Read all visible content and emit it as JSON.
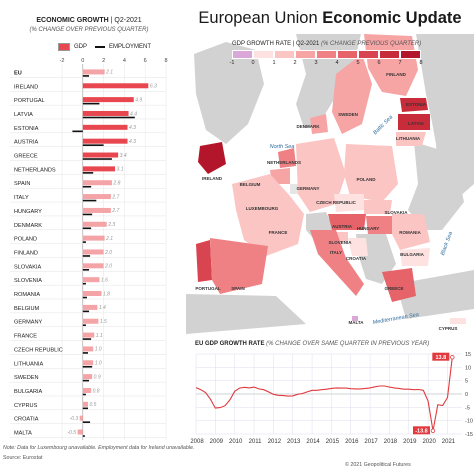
{
  "left_chart": {
    "title": "ECONOMIC GROWTH",
    "title_suffix": " | Q2-2021",
    "subtitle": "(% CHANGE OVER PREVIOUS QUARTER)",
    "legend": {
      "gdp": "GDP",
      "employment": "EMPLOYMENT"
    }
  },
  "main_title": {
    "regular": "European Union ",
    "bold": "Economic Update"
  },
  "map": {
    "legend_title": "GDP GROWTH RATE | Q2-2021 ",
    "legend_note": "(% CHANGE PREVIOUS QUARTER)",
    "legend_ticks": [
      "-1",
      "0",
      "1",
      "2",
      "3",
      "4",
      "5",
      "6",
      "7",
      "8"
    ],
    "legend_colors": [
      "#d9a8d8",
      "#fde2e1",
      "#fbc5c3",
      "#f6a4a4",
      "#ef8184",
      "#e56369",
      "#d84550",
      "#c82c3a",
      "#b3162a"
    ],
    "sea_labels": [
      "North Sea",
      "Baltic Sea",
      "Black Sea",
      "Mediterranean Sea"
    ],
    "country_labels": [
      "FINLAND",
      "SWEDEN",
      "ESTONIA",
      "LATVIA",
      "LITHUANIA",
      "DENMARK",
      "IRELAND",
      "NETHERLANDS",
      "BELGIUM",
      "LUXEMBOURG",
      "GERMANY",
      "POLAND",
      "CZECH REPUBLIC",
      "SLOVAKIA",
      "AUSTRIA",
      "HUNGARY",
      "ROMANIA",
      "FRANCE",
      "SLOVENIA",
      "CROATIA",
      "BULGARIA",
      "ITALY",
      "PORTUGAL",
      "SPAIN",
      "GREECE",
      "MALTA",
      "CYPRUS"
    ]
  },
  "line_chart_title": {
    "bold": "EU GDP GROWTH RATE ",
    "note": "(% CHANGE OVER SAME QUARTER IN PREVIOUS YEAR)"
  },
  "notes": {
    "data_note": "Note: Data for Luxembourg unavailable. Employment data for Ireland unavailable.",
    "source": "Source: Eurostat",
    "copyright": "© 2021 Geopolitical Futures"
  },
  "colors": {
    "gdp_bar": "#e8474f",
    "gdp_bar_light": "#f4a3a6",
    "employment": "#111111",
    "line": "#e03a3e",
    "map_water": "#ffffff",
    "map_nonEU": "#d2d2d2"
  },
  "chart_data": [
    {
      "type": "bar",
      "title": "ECONOMIC GROWTH | Q2-2021",
      "subtitle": "(% CHANGE OVER PREVIOUS QUARTER)",
      "xlim": [
        -2,
        8
      ],
      "xticks": [
        -2,
        0,
        2,
        4,
        6,
        8
      ],
      "categories": [
        "EU",
        "IRELAND",
        "PORTUGAL",
        "LATVIA",
        "ESTONIA",
        "AUSTRIA",
        "GREECE",
        "NETHERLANDS",
        "SPAIN",
        "ITALY",
        "HUNGARY",
        "DENMARK",
        "POLAND",
        "FINLAND",
        "SLOVAKIA",
        "SLOVENIA",
        "ROMANIA",
        "BELGIUM",
        "GERMANY",
        "FRANCE",
        "CZECH REPUBLIC",
        "LITHUANIA",
        "SWEDEN",
        "BULGARIA",
        "CYPRUS",
        "CROATIA",
        "MALTA"
      ],
      "series": [
        {
          "name": "GDP",
          "values": [
            2.1,
            6.3,
            4.9,
            4.4,
            4.3,
            4.3,
            3.4,
            3.1,
            2.8,
            2.7,
            2.7,
            2.3,
            2.1,
            2.0,
            2.0,
            1.6,
            1.8,
            1.4,
            1.5,
            1.1,
            1.0,
            1.0,
            0.9,
            0.8,
            0.5,
            -0.3,
            -0.5
          ],
          "labels": [
            "2.1",
            "6.3",
            "4.9",
            "4.4",
            "4.3",
            "4.3",
            "3.4",
            "3.1",
            "2.8",
            "2.7",
            "2.7",
            "2.3",
            "2.1",
            "2.0",
            "2.0",
            "1.6",
            "1.8",
            "1.4",
            "1.5",
            "1.1",
            "1.0",
            "1.0",
            "0.9",
            "0.8",
            "0.5",
            "-0.3",
            "-0.5"
          ]
        },
        {
          "name": "EMPLOYMENT",
          "values": [
            0.6,
            null,
            1.6,
            5.0,
            -1.0,
            2.0,
            2.8,
            1.0,
            0.8,
            1.3,
            0.9,
            0.8,
            0.3,
            0.7,
            0.6,
            0.3,
            0.4,
            0.6,
            0.3,
            0.8,
            0.5,
            0.9,
            0.6,
            0.3,
            0.5,
            0.7,
            0.2
          ]
        }
      ]
    },
    {
      "type": "line",
      "title": "EU GDP GROWTH RATE",
      "subtitle": "(% CHANGE OVER SAME QUARTER IN PREVIOUS YEAR)",
      "xlim": [
        2008,
        2021.75
      ],
      "ylim": [
        -15,
        15
      ],
      "xticks": [
        2008,
        2009,
        2010,
        2011,
        2012,
        2013,
        2014,
        2015,
        2016,
        2017,
        2018,
        2019,
        2020,
        2021
      ],
      "yticks": [
        -15,
        -10,
        -5,
        0,
        5,
        10,
        15
      ],
      "x": [
        2008.0,
        2008.25,
        2008.5,
        2008.75,
        2009.0,
        2009.25,
        2009.5,
        2009.75,
        2010.0,
        2010.25,
        2010.5,
        2010.75,
        2011.0,
        2011.25,
        2011.5,
        2011.75,
        2012.0,
        2012.25,
        2012.5,
        2012.75,
        2013.0,
        2013.25,
        2013.5,
        2013.75,
        2014.0,
        2014.25,
        2014.5,
        2014.75,
        2015.0,
        2015.25,
        2015.5,
        2015.75,
        2016.0,
        2016.25,
        2016.5,
        2016.75,
        2017.0,
        2017.25,
        2017.5,
        2017.75,
        2018.0,
        2018.25,
        2018.5,
        2018.75,
        2019.0,
        2019.25,
        2019.5,
        2019.75,
        2020.0,
        2020.25,
        2020.5,
        2020.75,
        2021.0,
        2021.25
      ],
      "series": [
        {
          "name": "EU GDP growth",
          "values": [
            2.4,
            1.6,
            0.5,
            -2.0,
            -5.3,
            -5.1,
            -4.4,
            -2.2,
            1.0,
            2.2,
            2.5,
            2.3,
            2.6,
            1.9,
            1.6,
            0.8,
            -0.1,
            -0.5,
            -0.6,
            -0.8,
            -0.7,
            -0.1,
            0.2,
            0.8,
            1.4,
            1.4,
            1.6,
            1.8,
            2.1,
            2.3,
            2.2,
            2.2,
            2.0,
            1.9,
            1.9,
            2.1,
            2.3,
            2.7,
            3.0,
            3.0,
            2.6,
            2.3,
            2.1,
            1.8,
            1.8,
            1.6,
            1.7,
            1.4,
            -2.7,
            -13.8,
            -4.0,
            -4.3,
            -1.3,
            13.8
          ]
        }
      ],
      "annotations": [
        {
          "x": 2020.25,
          "label": "-13.8"
        },
        {
          "x": 2021.25,
          "label": "13.8"
        }
      ]
    }
  ]
}
